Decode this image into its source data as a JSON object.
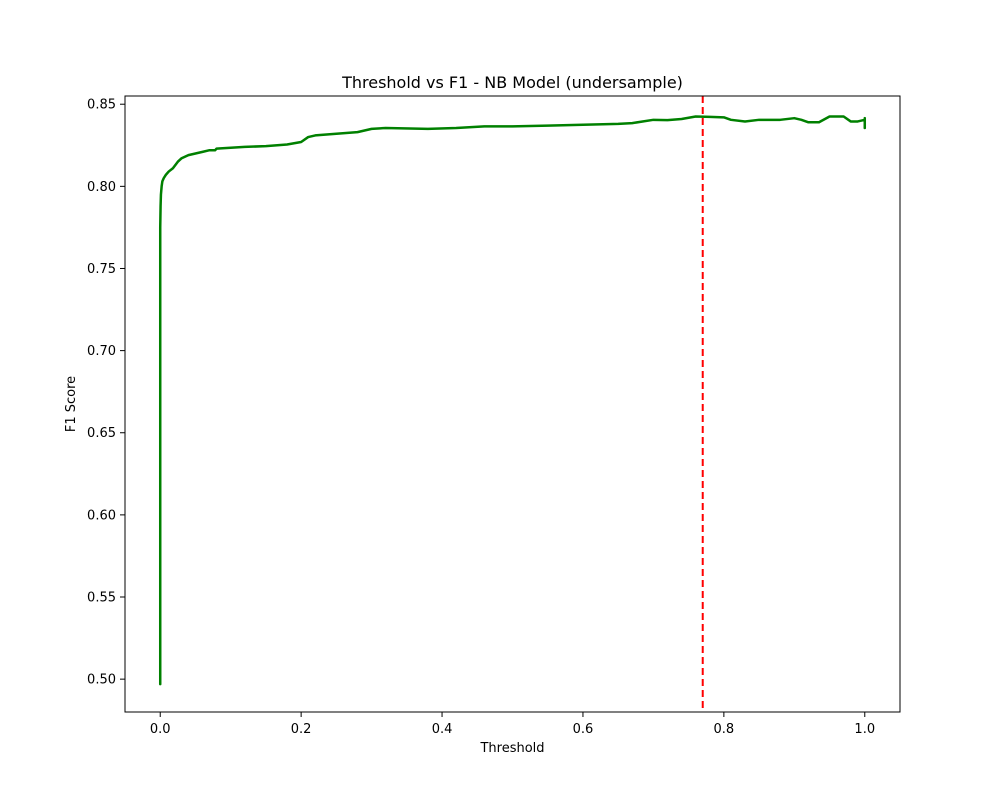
{
  "chart_data": {
    "type": "line",
    "title": "Threshold vs F1 - NB Model (undersample)",
    "xlabel": "Threshold",
    "ylabel": "F1 Score",
    "xlim": [
      -0.05,
      1.05
    ],
    "ylim": [
      0.48,
      0.855
    ],
    "xticks": [
      0.0,
      0.2,
      0.4,
      0.6,
      0.8,
      1.0
    ],
    "xtick_labels": [
      "0.0",
      "0.2",
      "0.4",
      "0.6",
      "0.8",
      "1.0"
    ],
    "yticks": [
      0.5,
      0.55,
      0.6,
      0.65,
      0.7,
      0.75,
      0.8,
      0.85
    ],
    "ytick_labels": [
      "0.50",
      "0.55",
      "0.60",
      "0.65",
      "0.70",
      "0.75",
      "0.80",
      "0.85"
    ],
    "grid": false,
    "series": [
      {
        "color": "#008000",
        "x": [
          0.0,
          0.0,
          0.0,
          0.0005,
          0.001,
          0.002,
          0.003,
          0.005,
          0.008,
          0.012,
          0.018,
          0.025,
          0.03,
          0.04,
          0.05,
          0.06,
          0.07,
          0.078,
          0.08,
          0.1,
          0.12,
          0.15,
          0.18,
          0.2,
          0.21,
          0.22,
          0.25,
          0.28,
          0.3,
          0.32,
          0.38,
          0.42,
          0.46,
          0.5,
          0.55,
          0.6,
          0.65,
          0.67,
          0.7,
          0.72,
          0.74,
          0.76,
          0.78,
          0.8,
          0.81,
          0.83,
          0.85,
          0.88,
          0.9,
          0.91,
          0.92,
          0.935,
          0.95,
          0.97,
          0.98,
          0.99,
          1.0,
          1.0,
          1.0
        ],
        "y": [
          0.497,
          0.62,
          0.775,
          0.788,
          0.795,
          0.8,
          0.803,
          0.805,
          0.807,
          0.809,
          0.811,
          0.815,
          0.817,
          0.819,
          0.82,
          0.821,
          0.822,
          0.822,
          0.823,
          0.8235,
          0.824,
          0.8245,
          0.8255,
          0.827,
          0.83,
          0.831,
          0.832,
          0.833,
          0.835,
          0.8355,
          0.835,
          0.8355,
          0.8365,
          0.8365,
          0.837,
          0.8375,
          0.838,
          0.8385,
          0.8405,
          0.8403,
          0.841,
          0.8425,
          0.8423,
          0.842,
          0.8405,
          0.8395,
          0.8405,
          0.8405,
          0.8415,
          0.8405,
          0.839,
          0.839,
          0.8425,
          0.8425,
          0.8395,
          0.8395,
          0.8405,
          0.8355,
          0.8415
        ]
      }
    ],
    "reference_line": {
      "orientation": "vertical",
      "x": 0.77,
      "color": "#ff0000",
      "style": "dashed"
    }
  }
}
